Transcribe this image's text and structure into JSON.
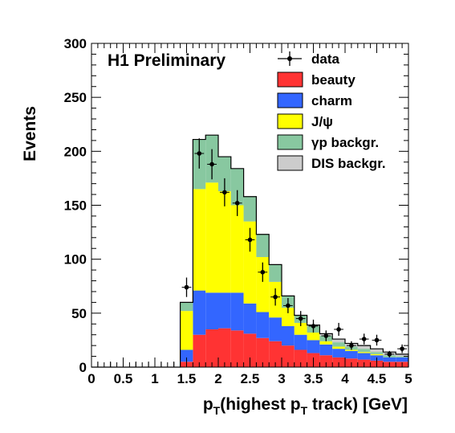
{
  "chart_data": {
    "type": "bar",
    "stacked": true,
    "annotation": "H1 Preliminary",
    "xlabel": {
      "main": "p",
      "sub1": "T",
      "mid": "(highest p",
      "sub2": "T",
      "tail": " track) [GeV]"
    },
    "ylabel": "Events",
    "xlim": [
      0,
      5
    ],
    "ylim": [
      0,
      300
    ],
    "x_ticks": [
      "0",
      "0.5",
      "1",
      "1.5",
      "2",
      "2.5",
      "3",
      "3.5",
      "4",
      "4.5",
      "5"
    ],
    "y_ticks": [
      "0",
      "50",
      "100",
      "150",
      "200",
      "250",
      "300"
    ],
    "bin_edges": [
      0,
      0.2,
      0.4,
      0.6,
      0.8,
      1.0,
      1.2,
      1.4,
      1.6,
      1.8,
      2.0,
      2.2,
      2.4,
      2.6,
      2.8,
      3.0,
      3.2,
      3.4,
      3.6,
      3.8,
      4.0,
      4.2,
      4.4,
      4.6,
      4.8,
      5.0
    ],
    "series": [
      {
        "name": "beauty",
        "color": "#ff3333",
        "values": [
          0,
          0,
          0,
          0,
          0,
          0,
          0,
          5,
          30,
          35,
          36,
          34,
          31,
          27,
          24,
          20,
          16,
          13,
          11,
          9,
          8,
          7,
          6,
          5,
          5
        ]
      },
      {
        "name": "charm",
        "color": "#3366ff",
        "values": [
          0,
          0,
          0,
          0,
          0,
          0,
          0,
          11,
          41,
          34,
          33,
          35,
          28,
          24,
          22,
          18,
          14,
          12,
          10,
          8,
          7,
          6,
          5,
          4,
          4
        ]
      },
      {
        "name": "J/ψ",
        "color": "#ffff00",
        "values": [
          0,
          0,
          0,
          0,
          0,
          0,
          0,
          36,
          94,
          102,
          94,
          81,
          76,
          51,
          33,
          17,
          11,
          7,
          3,
          2,
          1,
          1,
          1,
          0,
          0
        ]
      },
      {
        "name": "γp backgr.",
        "color": "#88c8a0",
        "values": [
          0,
          0,
          0,
          0,
          0,
          0,
          0,
          8,
          46,
          44,
          32,
          34,
          23,
          21,
          16,
          11,
          7,
          6,
          5,
          4,
          3,
          3,
          2,
          2,
          1
        ]
      },
      {
        "name": "DIS backgr.",
        "color": "#cccccc",
        "values": [
          0,
          0,
          0,
          0,
          0,
          0,
          0,
          0,
          0,
          0,
          0,
          0,
          0,
          0,
          0,
          0,
          0,
          1,
          2,
          3,
          3,
          3,
          3,
          3,
          2
        ]
      }
    ],
    "data": {
      "name": "data",
      "values": [
        0,
        0,
        0,
        0,
        0,
        0,
        0,
        74,
        198,
        188,
        162,
        152,
        118,
        88,
        65,
        57,
        45,
        38,
        29,
        35,
        20,
        26,
        25,
        12,
        17
      ],
      "errors": [
        0,
        0,
        0,
        0,
        0,
        0,
        0,
        9,
        14,
        14,
        13,
        12,
        11,
        9,
        8,
        7,
        7,
        6,
        5,
        6,
        4,
        5,
        5,
        3,
        4
      ]
    },
    "legend_position": "top-right"
  }
}
